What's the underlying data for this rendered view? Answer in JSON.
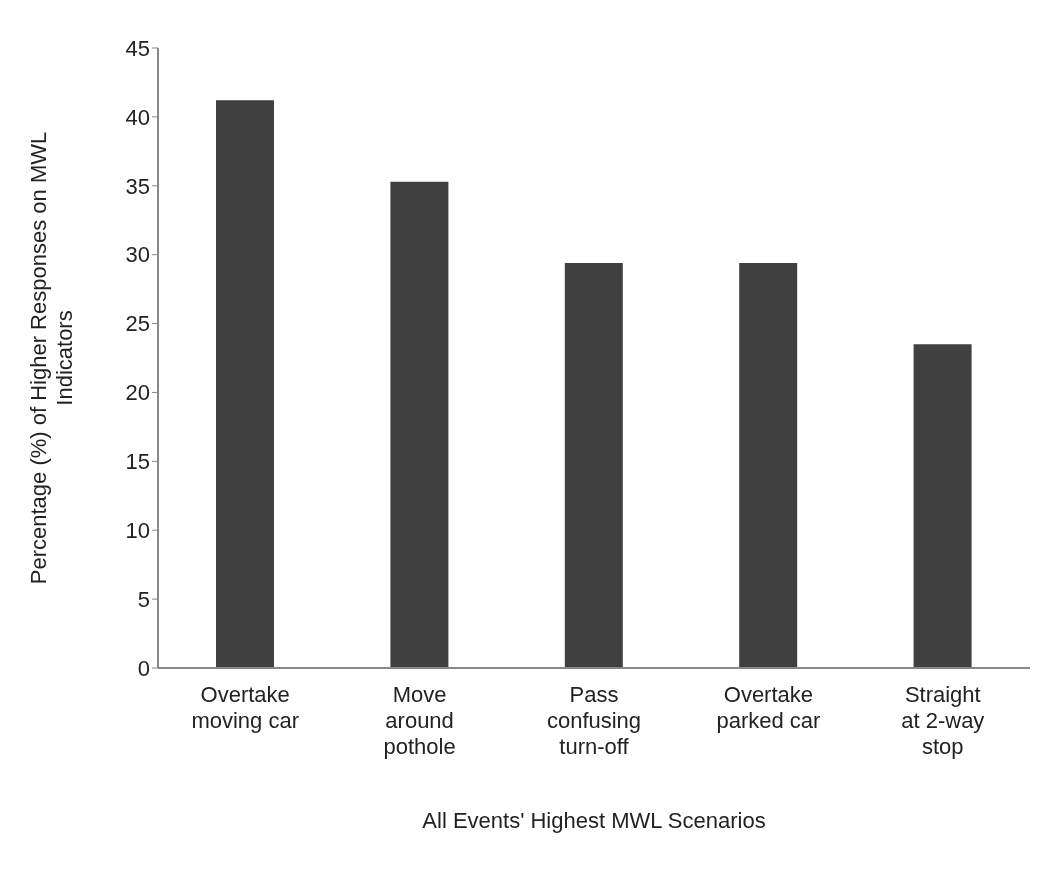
{
  "chart_data": {
    "type": "bar",
    "xlabel": "All Events' Highest MWL Scenarios",
    "ylabel": "Percentage (%) of Higher Responses on MWL Indicators",
    "categories": [
      "Overtake moving car",
      "Move around pothole",
      "Pass confusing turn-off",
      "Overtake parked car",
      "Straight at 2-way stop"
    ],
    "values": [
      41.2,
      35.3,
      29.4,
      29.4,
      23.5
    ],
    "color": "#404040",
    "ylim": [
      0,
      45
    ],
    "yticks": [
      0,
      5,
      10,
      15,
      20,
      25,
      30,
      35,
      40,
      45
    ],
    "grid": false,
    "legend": false
  }
}
